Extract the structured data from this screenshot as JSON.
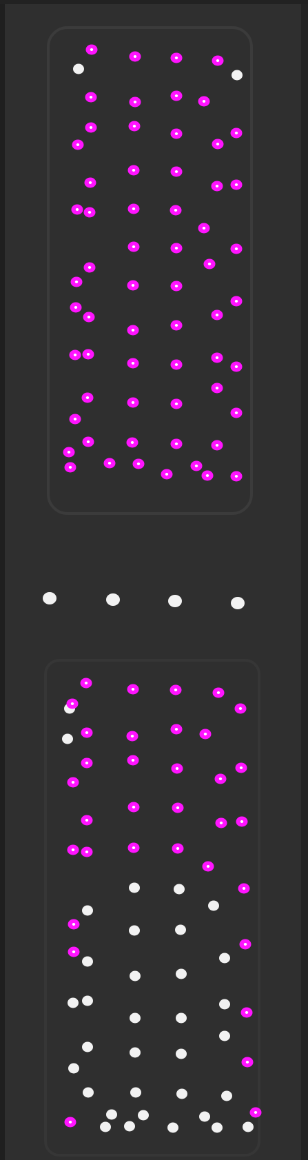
{
  "image": {
    "description_labels": {
      "figure": "fluorescence-microscopy-panel"
    },
    "colors": {
      "background": "#2f2f2f",
      "frame": "#3a3a3a",
      "well_outline": "#3b3b3b",
      "dot": "#f2f2f2",
      "marker": "#ff14ff"
    }
  }
}
